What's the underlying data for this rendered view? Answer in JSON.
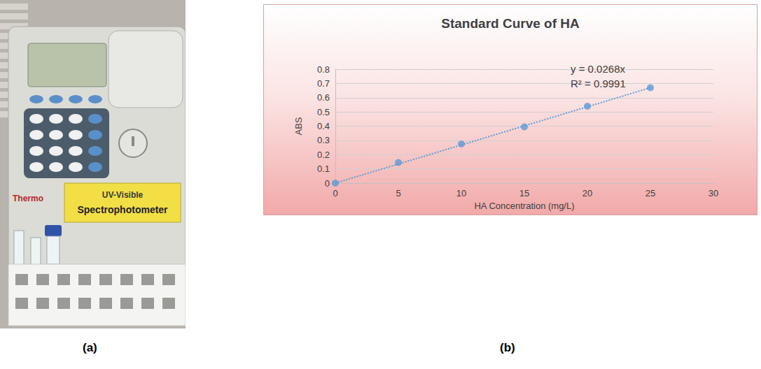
{
  "chart_data": {
    "type": "scatter",
    "title": "Standard Curve of HA",
    "x_label": "HA Concentration (mg/L)",
    "y_label": "ABS",
    "series": [
      {
        "type": "scatter",
        "marker": "circle",
        "color": "#5b9bd5",
        "x": [
          0,
          5,
          10,
          15,
          20,
          25
        ],
        "values": [
          0,
          0.145,
          0.275,
          0.395,
          0.54,
          0.67
        ]
      },
      {
        "type": "line",
        "line_style": "dotted",
        "color": "#5b9bd5",
        "x": [
          0,
          25
        ],
        "values": [
          0,
          0.67
        ]
      }
    ],
    "annotations": [
      "y = 0.0268x",
      "R² = 0.9991"
    ],
    "xlim": [
      0,
      30
    ],
    "xticks": [
      0,
      5,
      10,
      15,
      20,
      25,
      30
    ],
    "ylim": [
      0,
      0.8
    ],
    "yticks": [
      0,
      0.1,
      0.2,
      0.3,
      0.4,
      0.5,
      0.6,
      0.7,
      0.8
    ],
    "grid": true
  },
  "figure": {
    "panel_labels": [
      "(a)",
      "(b)"
    ],
    "photo_texts": [
      "Thermo",
      "UV-Visible",
      "Spectrophotometer"
    ]
  }
}
